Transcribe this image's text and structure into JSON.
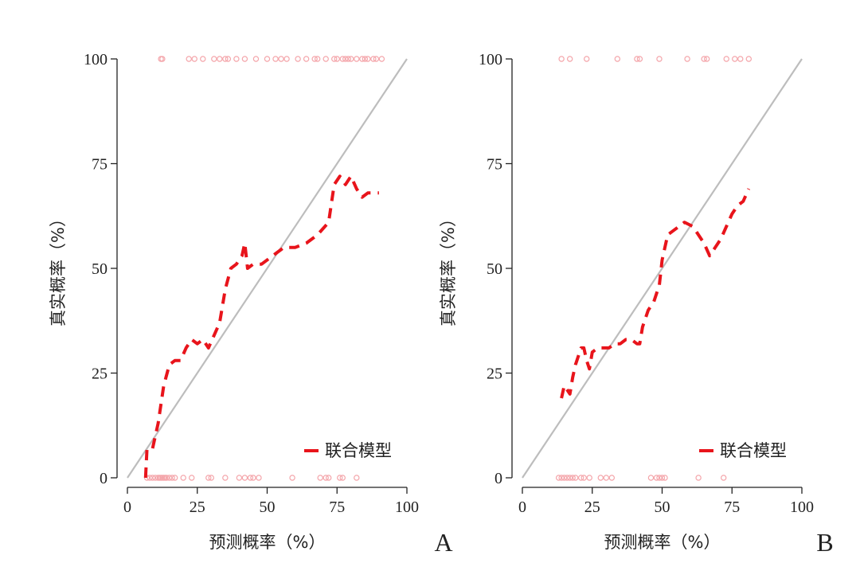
{
  "chart_data": [
    {
      "panel": "A",
      "type": "line",
      "title": "",
      "xlabel": "预测概率（%）",
      "ylabel": "真实概率（%）",
      "xlim": [
        0,
        100
      ],
      "ylim": [
        0,
        100
      ],
      "xticks": [
        0,
        25,
        50,
        75,
        100
      ],
      "yticks": [
        0,
        25,
        50,
        75,
        100
      ],
      "grid": false,
      "legend": {
        "position": "bottom-right",
        "entries": [
          "联合模型"
        ]
      },
      "colors": {
        "model": "#e8141b",
        "reference": "#bdbdbd",
        "rug": "#f4a5aa"
      },
      "reference_line": {
        "x": [
          0,
          100
        ],
        "y": [
          0,
          100
        ]
      },
      "series": [
        {
          "name": "联合模型",
          "style": "dashed",
          "x": [
            6.5,
            7,
            9,
            11,
            13,
            15,
            17,
            19,
            21,
            23,
            25,
            27,
            29,
            31,
            33,
            35,
            37,
            39,
            41,
            42,
            43,
            45,
            48,
            52,
            56,
            60,
            64,
            68,
            72,
            74,
            76,
            78,
            80,
            82,
            84,
            86,
            88,
            90
          ],
          "y": [
            0,
            7,
            7,
            13,
            22,
            27,
            28,
            28,
            31,
            33,
            32,
            33,
            31,
            34,
            37,
            45,
            50,
            51,
            53,
            56,
            50,
            51,
            51,
            53,
            55,
            55,
            56,
            58,
            61,
            70,
            72,
            70,
            72,
            69,
            67,
            68,
            68,
            68
          ]
        }
      ],
      "rug_top_x": [
        12,
        12.5,
        22,
        24,
        27,
        31,
        33,
        35,
        36,
        39,
        42,
        46,
        50,
        53,
        55,
        57,
        61,
        64,
        67,
        68,
        71,
        74,
        75,
        77,
        78,
        79,
        80,
        82,
        84,
        85,
        86,
        88,
        89,
        91
      ],
      "rug_bottom_x": [
        7,
        8,
        9,
        10,
        11,
        11.5,
        12,
        12.5,
        13,
        13.5,
        14,
        15,
        16,
        17,
        20,
        23,
        29,
        30,
        35,
        40,
        42,
        44,
        45,
        47,
        59,
        69,
        71,
        72,
        76,
        77,
        82
      ]
    },
    {
      "panel": "B",
      "type": "line",
      "title": "",
      "xlabel": "预测概率（%）",
      "ylabel": "真实概率（%）",
      "xlim": [
        0,
        100
      ],
      "ylim": [
        0,
        100
      ],
      "xticks": [
        0,
        25,
        50,
        75,
        100
      ],
      "yticks": [
        0,
        25,
        50,
        75,
        100
      ],
      "grid": false,
      "legend": {
        "position": "bottom-right",
        "entries": [
          "联合模型"
        ]
      },
      "colors": {
        "model": "#e8141b",
        "reference": "#bdbdbd",
        "rug": "#f4a5aa"
      },
      "reference_line": {
        "x": [
          0,
          100
        ],
        "y": [
          0,
          100
        ]
      },
      "series": [
        {
          "name": "联合模型",
          "style": "dashed",
          "x": [
            14,
            15,
            16,
            17,
            18,
            19,
            20,
            21,
            22,
            23,
            24,
            25,
            27,
            29,
            31,
            33,
            35,
            37,
            39,
            41,
            42,
            43,
            45,
            47,
            49,
            50,
            51,
            52,
            54,
            56,
            58,
            61,
            63,
            65,
            67,
            69,
            71,
            73,
            75,
            77,
            79,
            81
          ],
          "y": [
            19,
            22,
            21,
            20,
            24,
            27,
            29,
            31,
            31,
            28,
            26,
            30,
            31,
            31,
            31,
            32,
            32,
            33,
            33,
            32,
            32,
            36,
            40,
            42,
            46,
            52,
            55,
            58,
            59,
            60,
            61,
            60,
            58,
            56,
            53,
            55,
            57,
            60,
            63,
            65,
            66,
            69
          ]
        }
      ],
      "rug_top_x": [
        14,
        17,
        23,
        34,
        41,
        42,
        49,
        59,
        65,
        66,
        73,
        76,
        78,
        81
      ],
      "rug_bottom_x": [
        13,
        14,
        15,
        16,
        17,
        18,
        19,
        21,
        22,
        24,
        28,
        30,
        32,
        46,
        48,
        49,
        50,
        51,
        63,
        72
      ]
    }
  ],
  "panel_labels": [
    "A",
    "B"
  ]
}
